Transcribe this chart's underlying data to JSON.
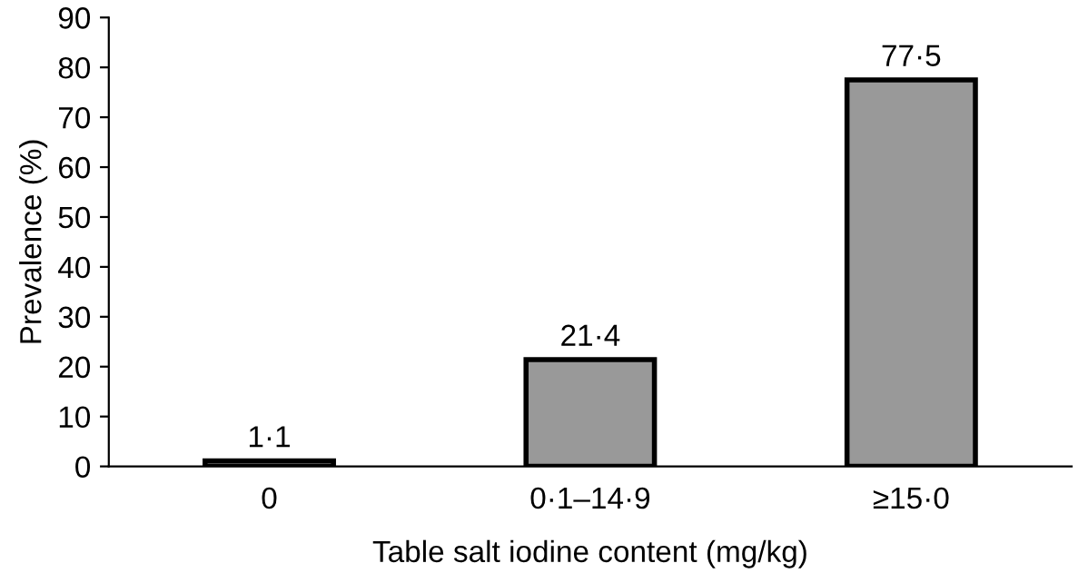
{
  "chart_data": {
    "type": "bar",
    "xlabel": "Table salt iodine content (mg/kg)",
    "ylabel": "Prevalence (%)",
    "categories": [
      "0",
      "0·1–14·9",
      "≥15·0"
    ],
    "values": [
      1.1,
      21.4,
      77.5
    ],
    "value_labels": [
      "1·1",
      "21·4",
      "77·5"
    ],
    "color": "#999999",
    "ylim": [
      0,
      90
    ],
    "yticks": [
      0,
      10,
      20,
      30,
      40,
      50,
      60,
      70,
      80,
      90
    ],
    "grid": false,
    "legend": false
  }
}
